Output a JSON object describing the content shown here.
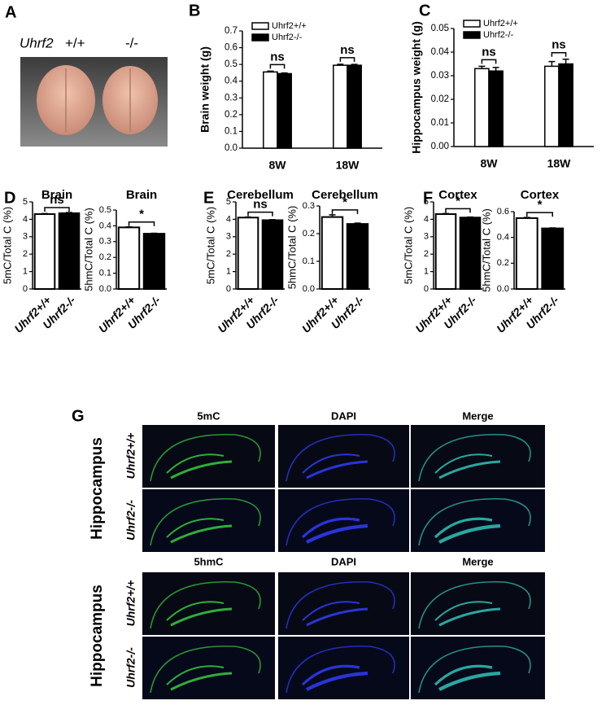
{
  "panel_a": {
    "panel_label": "A",
    "genotype": "Uhrf2",
    "wt": "+/+",
    "ko": "-/-"
  },
  "panel_g": {
    "panel_label": "G",
    "region": [
      "Hippocampus",
      "Hippocampus"
    ],
    "headers": [
      [
        "5mC",
        "DAPI",
        "Merge"
      ],
      [
        "5hmC",
        "DAPI",
        "Merge"
      ]
    ],
    "rows": [
      [
        "Uhrf2+/+",
        "Uhrf2-/-"
      ],
      [
        "Uhrf2+/+",
        "Uhrf2-/-"
      ]
    ]
  },
  "chart_data": [
    {
      "type": "bar",
      "panel_label": "B",
      "y_label": "Brain weight (g)",
      "categories": [
        "8W",
        "18W"
      ],
      "series": [
        {
          "name": "Uhrf2+/+",
          "color": "#ffffff",
          "values": [
            0.455,
            0.495
          ],
          "errors": [
            0.005,
            0.006
          ]
        },
        {
          "name": "Uhrf2-/-",
          "color": "#000000",
          "values": [
            0.445,
            0.495
          ],
          "errors": [
            0.004,
            0.005
          ]
        }
      ],
      "annotations": [
        "ns",
        "ns"
      ],
      "ylim": [
        0,
        0.7
      ],
      "yticks": [
        {
          "value": 0,
          "label": "0.0"
        },
        0.1,
        0.2,
        0.3,
        0.4,
        0.5,
        0.6,
        0.7
      ]
    },
    {
      "type": "bar",
      "panel_label": "C",
      "y_label": "Hippocampus weight (g)",
      "categories": [
        "8W",
        "18W"
      ],
      "series": [
        {
          "name": "Uhrf2+/+",
          "color": "#ffffff",
          "values": [
            0.033,
            0.034
          ],
          "errors": [
            0.001,
            0.002
          ]
        },
        {
          "name": "Uhrf2-/-",
          "color": "#000000",
          "values": [
            0.032,
            0.035
          ],
          "errors": [
            0.0015,
            0.002
          ]
        }
      ],
      "annotations": [
        "ns",
        "ns"
      ],
      "ylim": [
        0,
        0.05
      ],
      "yticks": [
        {
          "value": 0,
          "label": "0.00"
        },
        0.01,
        0.02,
        0.03,
        0.04,
        0.05
      ]
    },
    {
      "type": "bar",
      "panel_label": "D",
      "title": "Brain",
      "y_label": "5mC/Total C (%)",
      "categories": [
        "Uhrf2+/+",
        "Uhrf2-/-"
      ],
      "values": [
        4.3,
        4.35
      ],
      "errors": [
        0.03,
        0.04
      ],
      "colors": [
        "#ffffff",
        "#000000"
      ],
      "annotation": "ns",
      "ylim": [
        0,
        5
      ],
      "yticks": [
        0,
        1,
        2,
        3,
        4,
        5
      ]
    },
    {
      "type": "bar",
      "title": "Brain",
      "y_label": "5hmC/Total C (%)",
      "categories": [
        "Uhrf2+/+",
        "Uhrf2-/-"
      ],
      "values": [
        0.39,
        0.35
      ],
      "errors": [
        0.003,
        0.003
      ],
      "colors": [
        "#ffffff",
        "#000000"
      ],
      "annotation": "*",
      "ylim": [
        0,
        0.5
      ],
      "yticks": [
        {
          "value": 0,
          "label": "0.0"
        },
        0.1,
        0.2,
        0.3,
        0.4,
        0.5
      ]
    },
    {
      "type": "bar",
      "panel_label": "E",
      "title": "Cerebellum",
      "y_label": "5mC/Total C (%)",
      "categories": [
        "Uhrf2+/+",
        "Uhrf2-/-"
      ],
      "values": [
        4.1,
        3.95
      ],
      "errors": [
        0.03,
        0.03
      ],
      "colors": [
        "#ffffff",
        "#000000"
      ],
      "annotation": "ns",
      "ylim": [
        0,
        5
      ],
      "yticks": [
        0,
        1,
        2,
        3,
        4,
        5
      ]
    },
    {
      "type": "bar",
      "title": "Cerebellum",
      "y_label": "5hmC/Total C (%)",
      "categories": [
        "Uhrf2+/+",
        "Uhrf2-/-"
      ],
      "values": [
        0.26,
        0.235
      ],
      "errors": [
        0.008,
        0.003
      ],
      "colors": [
        "#ffffff",
        "#000000"
      ],
      "annotation": "*",
      "ylim": [
        0,
        0.3
      ],
      "yticks": [
        {
          "value": 0,
          "label": "0.0"
        },
        0.1,
        0.2,
        0.3
      ]
    },
    {
      "type": "bar",
      "panel_label": "F",
      "title": "Cortex",
      "y_label": "5mC/Total C (%)",
      "categories": [
        "Uhrf2+/+",
        "Uhrf2-/-"
      ],
      "values": [
        4.3,
        4.1
      ],
      "errors": [
        0.03,
        0.03
      ],
      "colors": [
        "#ffffff",
        "#000000"
      ],
      "annotation": "*",
      "ylim": [
        0,
        5
      ],
      "yticks": [
        0,
        1,
        2,
        3,
        4,
        5
      ]
    },
    {
      "type": "bar",
      "title": "Cortex",
      "y_label": "5hmC/Total C (%)",
      "categories": [
        "Uhrf2+/+",
        "Uhrf2-/-"
      ],
      "values": [
        0.55,
        0.47
      ],
      "errors": [
        0.005,
        0.004
      ],
      "colors": [
        "#ffffff",
        "#000000"
      ],
      "annotation": "*",
      "ylim": [
        0,
        0.6
      ],
      "yticks": [
        {
          "value": 0,
          "label": "0.0"
        },
        0.2,
        0.4,
        0.6
      ]
    }
  ]
}
